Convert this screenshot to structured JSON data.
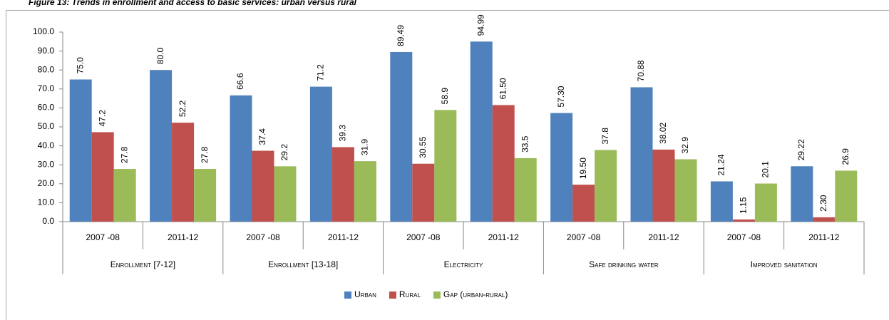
{
  "chart_data": {
    "type": "bar",
    "title": "Figure 13: Trends in enrollment and access to basic services: urban versus rural",
    "categories": [
      "2007 -08",
      "2011-12",
      "2007 -08",
      "2011-12",
      "2007 -08",
      "2011-12",
      "2007 -08",
      "2011-12",
      "2007 -08",
      "2011-12"
    ],
    "groups": [
      "Enrollment [7-12]",
      "Enrollment [13-18]",
      "Electricity",
      "Safe drinking water",
      "Improved sanitation"
    ],
    "series": [
      {
        "name": "Urban",
        "color": "#4f81bd",
        "values": [
          75,
          80,
          66.6,
          71.2,
          89.49,
          94.99,
          57.3,
          70.88,
          21.24,
          29.22
        ],
        "value_labels": [
          "75.0",
          "80.0",
          "66.6",
          "71.2",
          "89.49",
          "94.99",
          "57.30",
          "70.88",
          "21.24",
          "29.22"
        ]
      },
      {
        "name": "Rural",
        "color": "#c0504d",
        "values": [
          47.2,
          52.2,
          37.4,
          39.3,
          30.55,
          61.5,
          19.5,
          38.02,
          1.15,
          2.3
        ],
        "value_labels": [
          "47.2",
          "52.2",
          "37.4",
          "39.3",
          "30.55",
          "61.50",
          "19.50",
          "38.02",
          "1.15",
          "2.30"
        ]
      },
      {
        "name": "Gap (urban-rural)",
        "color": "#9bbb59",
        "values": [
          27.8,
          27.8,
          29.2,
          31.9,
          58.9,
          33.5,
          37.8,
          32.9,
          20.1,
          26.9
        ],
        "value_labels": [
          "27.8",
          "27.8",
          "29.2",
          "31.9",
          "58.9",
          "33.5",
          "37.8",
          "32.9",
          "20.1",
          "26.9"
        ]
      }
    ],
    "ylim": [
      0,
      100
    ],
    "yticks": [
      {
        "value": 0,
        "label": "0.0"
      },
      {
        "value": 10,
        "label": "10.0"
      },
      {
        "value": 20,
        "label": "20.0"
      },
      {
        "value": 30,
        "label": "30.0"
      },
      {
        "value": 40,
        "label": "40.0"
      },
      {
        "value": 50,
        "label": "50.0"
      },
      {
        "value": 60,
        "label": "60.0"
      },
      {
        "value": 70,
        "label": "70.0"
      },
      {
        "value": 80,
        "label": "80.0"
      },
      {
        "value": 90,
        "label": "90.0"
      },
      {
        "value": 100,
        "label": "100.0"
      }
    ],
    "grid": false,
    "legend": "bottom"
  }
}
